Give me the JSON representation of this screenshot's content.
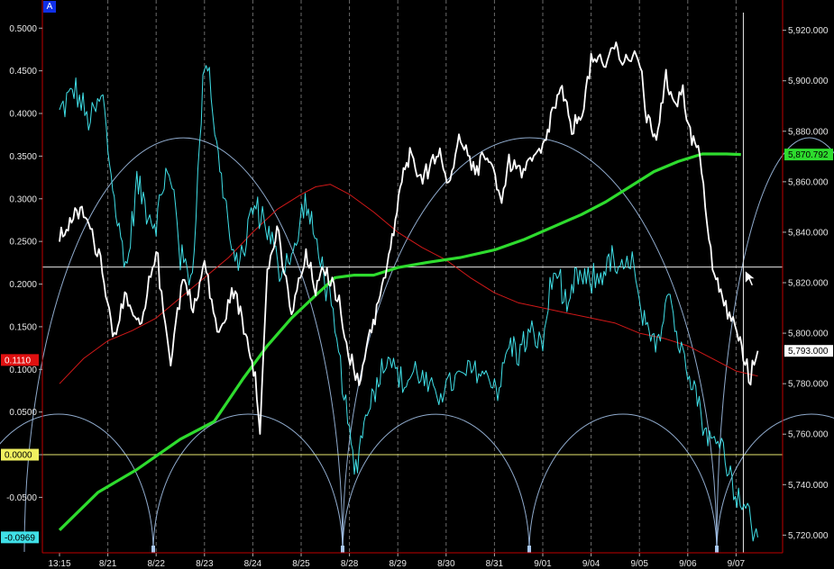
{
  "panel_badge": "A",
  "colors": {
    "background": "#000000",
    "axis_line": "#c00000",
    "grid": "#6a6a6a",
    "price": "#ffffff",
    "indicator": "#40e0e8",
    "long_ma": "#2edc2e",
    "short_ma": "#d01818",
    "cycle_arcs": "#a8c8f0",
    "zero_line": "#e8e870",
    "reference_line": "#e8e8e8"
  },
  "chart_data": {
    "type": "line",
    "x_labels": [
      "13:15",
      "8/21",
      "8/22",
      "8/23",
      "8/24",
      "8/25",
      "8/28",
      "8/29",
      "8/30",
      "8/31",
      "9/01",
      "9/04",
      "9/05",
      "9/06",
      "9/07"
    ],
    "left_axis": {
      "ticks": [
        "0.5000",
        "0.4500",
        "0.4000",
        "0.3500",
        "0.3000",
        "0.2500",
        "0.2000",
        "0.1500",
        "0.1000",
        "0.0500",
        "0.0000",
        "-0.0500"
      ],
      "range": [
        -0.115,
        0.533
      ]
    },
    "right_axis": {
      "ticks": [
        "5,920.000",
        "5,900.000",
        "5,880.000",
        "5,860.000",
        "5,840.000",
        "5,820.000",
        "5,800.000",
        "5,780.000",
        "5,760.000",
        "5,740.000",
        "5,720.000"
      ],
      "range": [
        5713,
        5932
      ]
    },
    "badges": {
      "left_red": "0.1110",
      "left_yellow": "0.0000",
      "left_cyan": "-0.0969",
      "right_green": "5,870.792",
      "right_white": "5,793.000"
    },
    "reference_level": 0.22,
    "cursor_x": 14.15,
    "series": [
      {
        "axis": "right",
        "points": [
          [
            0,
            5838
          ],
          [
            0.25,
            5845
          ],
          [
            0.5,
            5848
          ],
          [
            0.85,
            5830
          ],
          [
            1.1,
            5800
          ],
          [
            1.35,
            5812
          ],
          [
            1.7,
            5802
          ],
          [
            2.0,
            5835
          ],
          [
            2.15,
            5808
          ],
          [
            2.3,
            5790
          ],
          [
            2.55,
            5822
          ],
          [
            2.8,
            5810
          ],
          [
            3.0,
            5828
          ],
          [
            3.3,
            5798
          ],
          [
            3.6,
            5818
          ],
          [
            3.85,
            5800
          ],
          [
            4.05,
            5785
          ],
          [
            4.15,
            5762
          ],
          [
            4.3,
            5825
          ],
          [
            4.5,
            5840
          ],
          [
            4.8,
            5808
          ],
          [
            5.1,
            5830
          ],
          [
            5.3,
            5818
          ],
          [
            5.5,
            5825
          ],
          [
            5.75,
            5815
          ],
          [
            5.9,
            5800
          ],
          [
            6.05,
            5788
          ],
          [
            6.2,
            5778
          ],
          [
            6.35,
            5796
          ],
          [
            6.6,
            5812
          ],
          [
            6.85,
            5832
          ],
          [
            7.05,
            5858
          ],
          [
            7.25,
            5870
          ],
          [
            7.55,
            5862
          ],
          [
            7.8,
            5873
          ],
          [
            8.05,
            5860
          ],
          [
            8.3,
            5878
          ],
          [
            8.6,
            5862
          ],
          [
            8.85,
            5872
          ],
          [
            9.05,
            5860
          ],
          [
            9.15,
            5852
          ],
          [
            9.3,
            5868
          ],
          [
            9.6,
            5864
          ],
          [
            9.85,
            5870
          ],
          [
            10.0,
            5872
          ],
          [
            10.2,
            5888
          ],
          [
            10.4,
            5896
          ],
          [
            10.6,
            5880
          ],
          [
            10.85,
            5890
          ],
          [
            11.0,
            5908
          ],
          [
            11.3,
            5905
          ],
          [
            11.45,
            5915
          ],
          [
            11.65,
            5908
          ],
          [
            11.9,
            5910
          ],
          [
            12.05,
            5903
          ],
          [
            12.15,
            5885
          ],
          [
            12.35,
            5878
          ],
          [
            12.55,
            5900
          ],
          [
            12.75,
            5892
          ],
          [
            12.9,
            5896
          ],
          [
            13.05,
            5880
          ],
          [
            13.25,
            5870
          ],
          [
            13.4,
            5845
          ],
          [
            13.55,
            5822
          ],
          [
            13.75,
            5812
          ],
          [
            13.9,
            5806
          ],
          [
            14.05,
            5798
          ],
          [
            14.15,
            5790
          ],
          [
            14.3,
            5782
          ],
          [
            14.45,
            5793
          ]
        ],
        "noise": 5.0
      },
      {
        "axis": "left",
        "points": [
          [
            0,
            0.4
          ],
          [
            0.3,
            0.43
          ],
          [
            0.6,
            0.39
          ],
          [
            0.9,
            0.42
          ],
          [
            1.0,
            0.36
          ],
          [
            1.2,
            0.27
          ],
          [
            1.4,
            0.22
          ],
          [
            1.6,
            0.32
          ],
          [
            1.8,
            0.29
          ],
          [
            2.0,
            0.27
          ],
          [
            2.2,
            0.33
          ],
          [
            2.4,
            0.3
          ],
          [
            2.5,
            0.23
          ],
          [
            2.75,
            0.21
          ],
          [
            2.9,
            0.36
          ],
          [
            3.0,
            0.47
          ],
          [
            3.1,
            0.45
          ],
          [
            3.25,
            0.36
          ],
          [
            3.45,
            0.29
          ],
          [
            3.6,
            0.22
          ],
          [
            3.8,
            0.24
          ],
          [
            4.0,
            0.29
          ],
          [
            4.2,
            0.28
          ],
          [
            4.4,
            0.25
          ],
          [
            4.55,
            0.21
          ],
          [
            4.7,
            0.23
          ],
          [
            4.9,
            0.24
          ],
          [
            5.05,
            0.3
          ],
          [
            5.25,
            0.26
          ],
          [
            5.4,
            0.23
          ],
          [
            5.55,
            0.19
          ],
          [
            5.7,
            0.14
          ],
          [
            5.85,
            0.09
          ],
          [
            6.0,
            0.02
          ],
          [
            6.1,
            -0.02
          ],
          [
            6.2,
            0.01
          ],
          [
            6.4,
            0.06
          ],
          [
            6.6,
            0.09
          ],
          [
            6.8,
            0.12
          ],
          [
            7.1,
            0.08
          ],
          [
            7.4,
            0.1
          ],
          [
            7.7,
            0.07
          ],
          [
            8.0,
            0.08
          ],
          [
            8.3,
            0.09
          ],
          [
            8.6,
            0.1
          ],
          [
            8.9,
            0.09
          ],
          [
            9.1,
            0.08
          ],
          [
            9.3,
            0.13
          ],
          [
            9.5,
            0.12
          ],
          [
            9.7,
            0.14
          ],
          [
            10.0,
            0.13
          ],
          [
            10.15,
            0.19
          ],
          [
            10.3,
            0.22
          ],
          [
            10.5,
            0.16
          ],
          [
            10.7,
            0.21
          ],
          [
            10.9,
            0.2
          ],
          [
            11.2,
            0.21
          ],
          [
            11.4,
            0.23
          ],
          [
            11.6,
            0.21
          ],
          [
            11.85,
            0.23
          ],
          [
            12.0,
            0.17
          ],
          [
            12.2,
            0.13
          ],
          [
            12.4,
            0.14
          ],
          [
            12.6,
            0.2
          ],
          [
            12.8,
            0.13
          ],
          [
            13.0,
            0.11
          ],
          [
            13.2,
            0.07
          ],
          [
            13.35,
            0.03
          ],
          [
            13.55,
            0.01
          ],
          [
            13.7,
            0.02
          ],
          [
            13.85,
            -0.02
          ],
          [
            14.05,
            -0.05
          ],
          [
            14.2,
            -0.06
          ],
          [
            14.35,
            -0.09
          ],
          [
            14.45,
            -0.097
          ]
        ],
        "noise": 0.025
      },
      {
        "axis": "right",
        "points": [
          [
            0,
            5722
          ],
          [
            0.8,
            5737
          ],
          [
            1.6,
            5746
          ],
          [
            2.5,
            5758
          ],
          [
            3.2,
            5765
          ],
          [
            3.8,
            5782
          ],
          [
            4.3,
            5795
          ],
          [
            4.8,
            5806
          ],
          [
            5.3,
            5815
          ],
          [
            5.7,
            5822
          ],
          [
            6.1,
            5823
          ],
          [
            6.5,
            5823
          ],
          [
            7.0,
            5826
          ],
          [
            7.6,
            5828
          ],
          [
            8.3,
            5830
          ],
          [
            9.0,
            5833
          ],
          [
            9.6,
            5837
          ],
          [
            10.2,
            5842
          ],
          [
            10.8,
            5847
          ],
          [
            11.3,
            5852
          ],
          [
            11.8,
            5858
          ],
          [
            12.3,
            5864
          ],
          [
            12.8,
            5868
          ],
          [
            13.3,
            5871
          ],
          [
            13.8,
            5871
          ],
          [
            14.1,
            5870.8
          ]
        ]
      },
      {
        "axis": "right",
        "points": [
          [
            0,
            5780
          ],
          [
            0.5,
            5790
          ],
          [
            1.0,
            5797
          ],
          [
            1.5,
            5801
          ],
          [
            2.0,
            5806
          ],
          [
            2.5,
            5814
          ],
          [
            3.0,
            5822
          ],
          [
            3.5,
            5830
          ],
          [
            4.0,
            5840
          ],
          [
            4.5,
            5849
          ],
          [
            5.0,
            5855
          ],
          [
            5.3,
            5858
          ],
          [
            5.6,
            5859
          ],
          [
            6.0,
            5855
          ],
          [
            6.5,
            5848
          ],
          [
            7.0,
            5840
          ],
          [
            7.5,
            5834
          ],
          [
            8.0,
            5829
          ],
          [
            8.5,
            5822
          ],
          [
            9.0,
            5816
          ],
          [
            9.5,
            5812
          ],
          [
            10.0,
            5810
          ],
          [
            10.5,
            5808
          ],
          [
            11.0,
            5806
          ],
          [
            11.5,
            5804
          ],
          [
            12.0,
            5800
          ],
          [
            12.5,
            5798
          ],
          [
            13.0,
            5795
          ],
          [
            13.5,
            5790
          ],
          [
            14.0,
            5785
          ],
          [
            14.45,
            5783
          ]
        ]
      }
    ]
  }
}
